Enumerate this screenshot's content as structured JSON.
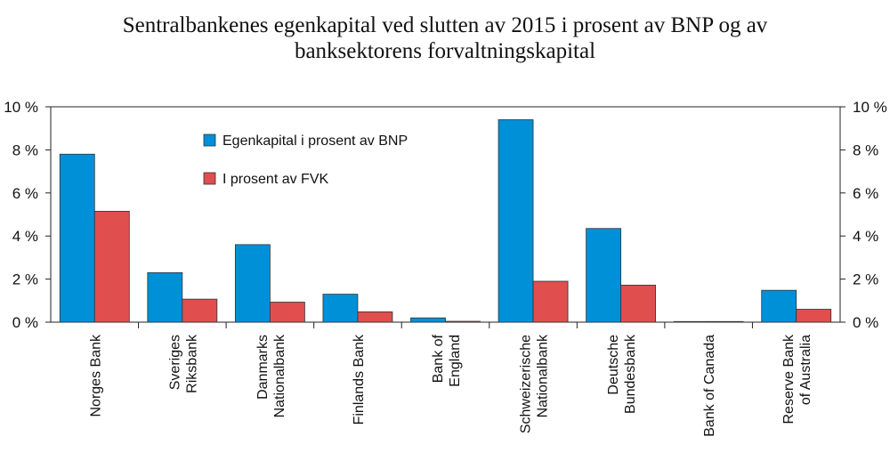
{
  "chart_data": {
    "type": "bar",
    "title_lines": [
      "Sentralbankenes egenkapital ved slutten av 2015 i prosent av BNP og av",
      "banksektorens forvaltningskapital"
    ],
    "categories": [
      [
        "Norges Bank"
      ],
      [
        "Sveriges",
        "Riksbank"
      ],
      [
        "Danmarks",
        "Nationalbank"
      ],
      [
        "Finlands Bank"
      ],
      [
        "Bank of",
        "England"
      ],
      [
        "Schweizerische",
        "Nationalbank"
      ],
      [
        "Deutsche",
        "Bundesbank"
      ],
      [
        "Bank of Canada"
      ],
      [
        "Reserve Bank",
        "of Australia"
      ]
    ],
    "series": [
      {
        "name": "Egenkapital i prosent av BNP",
        "color": "#0090d8",
        "values": [
          7.8,
          2.3,
          3.6,
          1.3,
          0.2,
          9.4,
          4.35,
          0.03,
          1.48
        ]
      },
      {
        "name": "I prosent av FVK",
        "color": "#e04e4e",
        "values": [
          5.15,
          1.07,
          0.93,
          0.48,
          0.04,
          1.9,
          1.72,
          0.03,
          0.6
        ]
      }
    ],
    "ylim": [
      0,
      10
    ],
    "yticks": [
      "0 %",
      "2 %",
      "4 %",
      "6 %",
      "8 %",
      "10 %"
    ],
    "ytick_values": [
      0,
      2,
      4,
      6,
      8,
      10
    ],
    "legend_position": "top-left",
    "grid": false
  }
}
